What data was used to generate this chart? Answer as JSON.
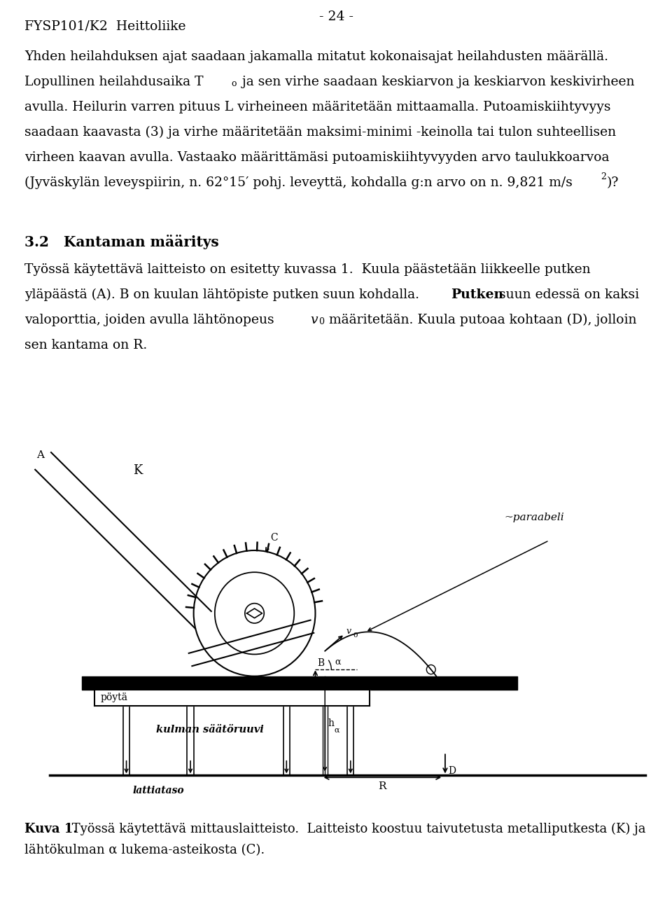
{
  "page_number": "- 24 -",
  "header_left": "FYSP101/K2  Heittoliike",
  "bg_color": "#ffffff",
  "text_color": "#000000",
  "fig_width": 9.6,
  "fig_height": 12.81,
  "dpi": 100,
  "body_lines": [
    "Yhden heilahduksen ajat saadaan jakamalla mitatut kokonaisajat heilahdusten määrällä.",
    "Lopullinen heilahdusaika T_o ja sen virhe saadaan keskiarvon ja keskiarvon keskivirheen",
    "avulla. Heilurin varren pituus L virheineen määritetään mittaamalla. Putoamiskiihtyvyys",
    "saadaan kaavasta (3) ja virhe määritetään maksimi-minimi -keinolla tai tulon suhteellisen",
    "virheen kaavan avulla. Vastaako määrittämäsi putoamiskiihtyvyyden arvo taulukkoarvoa",
    "(Jyväskylän leveyspiirin, n. 62°15′ pohj. leve yttä, kohdalla g:n arvo on n. 9,821 m/s^2)?"
  ],
  "section_heading": "3.2   Kantaman määritys",
  "section_lines": [
    "Työssä käytettävä laitteisto on esitetty kuvassa 1.  Kuula päästetään liikkeelle putken",
    "yläpäästä (A). B on kuulan lähtöpiste putken suun kohdalla. Putken suun edessä on kaksi",
    "valoporttia, joiden avulla lähtönopeus v_0 määritetään. Kuula putoaa kohtaan (D), jolloin",
    "sen kantama on R."
  ],
  "caption_bold": "Kuva 1.",
  "caption_line1": " Työssä käytettävä mittauslaitteisto.  Laitteisto koostuu taivutetusta metalliputkesta (K) ja",
  "caption_line2": "lähtökulman α lukema-asteikosta (C)."
}
